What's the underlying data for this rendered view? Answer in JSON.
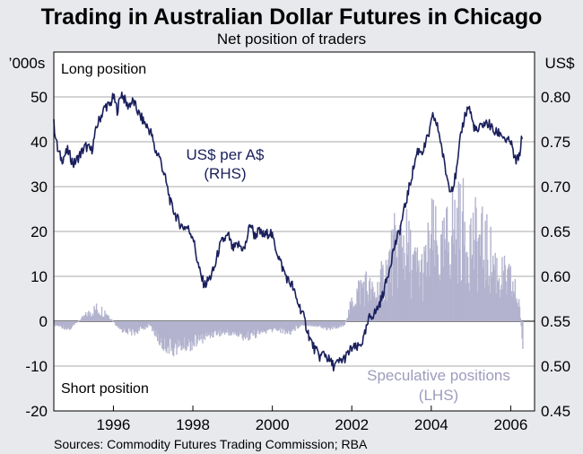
{
  "chart_data": {
    "type": "line",
    "title": "Trading in Australian Dollar Futures in Chicago",
    "subtitle": "Net position of traders",
    "left_axis": {
      "unit": "’000s",
      "range": [
        -20,
        60
      ],
      "ticks": [
        "50",
        "40",
        "30",
        "20",
        "10",
        "0",
        "-10",
        "-20"
      ],
      "tick_values": [
        50,
        40,
        30,
        20,
        10,
        0,
        -10,
        -20
      ]
    },
    "right_axis": {
      "unit": "US$",
      "range": [
        0.45,
        0.85
      ],
      "ticks": [
        "0.80",
        "0.75",
        "0.70",
        "0.65",
        "0.60",
        "0.55",
        "0.50",
        "0.45"
      ],
      "tick_values": [
        0.8,
        0.75,
        0.7,
        0.65,
        0.6,
        0.55,
        0.5,
        0.45
      ]
    },
    "x_axis": {
      "range": [
        1994.5,
        2006.6
      ],
      "ticks": [
        "1996",
        "1998",
        "2000",
        "2002",
        "2004",
        "2006"
      ],
      "tick_values": [
        1996,
        1998,
        2000,
        2002,
        2004,
        2006
      ]
    },
    "annotations": {
      "long": "Long position",
      "short": "Short position",
      "usd_label_1": "US$ per A$",
      "usd_label_2": "(RHS)",
      "spec_label_1": "Speculative positions",
      "spec_label_2": "(LHS)"
    },
    "series": [
      {
        "name": "US$ per A$ (RHS)",
        "color": "#1a1f5c",
        "x": [
          1994.5,
          1994.6,
          1994.7,
          1994.85,
          1995.0,
          1995.15,
          1995.3,
          1995.45,
          1995.6,
          1995.8,
          1995.9,
          1996.0,
          1996.1,
          1996.2,
          1996.35,
          1996.5,
          1996.65,
          1996.8,
          1996.95,
          1997.05,
          1997.15,
          1997.3,
          1997.45,
          1997.55,
          1997.65,
          1997.75,
          1997.85,
          1998.0,
          1998.1,
          1998.2,
          1998.3,
          1998.45,
          1998.55,
          1998.65,
          1998.75,
          1998.9,
          1999.0,
          1999.15,
          1999.3,
          1999.45,
          1999.55,
          1999.65,
          1999.8,
          1999.95,
          2000.1,
          2000.25,
          2000.4,
          2000.5,
          2000.6,
          2000.75,
          2000.85,
          2000.95,
          2001.05,
          2001.2,
          2001.3,
          2001.45,
          2001.55,
          2001.7,
          2001.85,
          2002.0,
          2002.15,
          2002.3,
          2002.45,
          2002.6,
          2002.75,
          2002.9,
          2003.05,
          2003.2,
          2003.35,
          2003.5,
          2003.65,
          2003.8,
          2003.95,
          2004.05,
          2004.2,
          2004.35,
          2004.45,
          2004.55,
          2004.65,
          2004.75,
          2004.85,
          2004.95,
          2005.05,
          2005.15,
          2005.3,
          2005.45,
          2005.6,
          2005.75,
          2005.9,
          2006.0,
          2006.1,
          2006.2,
          2006.3
        ],
        "values": [
          0.77,
          0.74,
          0.73,
          0.74,
          0.725,
          0.735,
          0.745,
          0.74,
          0.77,
          0.79,
          0.79,
          0.8,
          0.785,
          0.805,
          0.79,
          0.795,
          0.78,
          0.77,
          0.76,
          0.74,
          0.735,
          0.71,
          0.68,
          0.67,
          0.66,
          0.655,
          0.655,
          0.645,
          0.62,
          0.6,
          0.59,
          0.6,
          0.61,
          0.63,
          0.64,
          0.645,
          0.63,
          0.635,
          0.63,
          0.66,
          0.645,
          0.65,
          0.645,
          0.65,
          0.63,
          0.61,
          0.595,
          0.59,
          0.575,
          0.56,
          0.545,
          0.53,
          0.52,
          0.51,
          0.515,
          0.505,
          0.5,
          0.505,
          0.51,
          0.52,
          0.52,
          0.53,
          0.555,
          0.56,
          0.575,
          0.6,
          0.63,
          0.65,
          0.68,
          0.71,
          0.74,
          0.74,
          0.76,
          0.78,
          0.76,
          0.72,
          0.7,
          0.7,
          0.72,
          0.76,
          0.78,
          0.79,
          0.77,
          0.76,
          0.77,
          0.77,
          0.76,
          0.76,
          0.75,
          0.75,
          0.73,
          0.73,
          0.76
        ]
      },
      {
        "name": "Speculative positions (LHS)",
        "color": "#b3b3cf",
        "x": [
          1994.5,
          1994.9,
          1995.3,
          1995.55,
          1995.8,
          1996.1,
          1996.5,
          1996.9,
          1997.2,
          1997.5,
          1997.9,
          1998.3,
          1998.55,
          1998.9,
          1999.3,
          1999.7,
          2000.1,
          2000.4,
          2000.7,
          2001.0,
          2001.4,
          2001.8,
          2002.05,
          2002.3,
          2002.55,
          2002.8,
          2003.05,
          2003.3,
          2003.55,
          2003.8,
          2004.0,
          2004.25,
          2004.5,
          2004.75,
          2005.0,
          2005.25,
          2005.5,
          2005.75,
          2006.0,
          2006.2,
          2006.3
        ],
        "values": [
          -1,
          -2,
          2,
          4,
          3,
          -2,
          -3,
          -1,
          -6,
          -7,
          -6,
          -4,
          -3,
          -3,
          -4,
          -3,
          -2,
          -3,
          -1,
          -1,
          -2,
          -1,
          8,
          12,
          8,
          14,
          22,
          26,
          17,
          16,
          26,
          20,
          30,
          30,
          26,
          24,
          20,
          14,
          12,
          6,
          -8
        ]
      }
    ]
  }
}
